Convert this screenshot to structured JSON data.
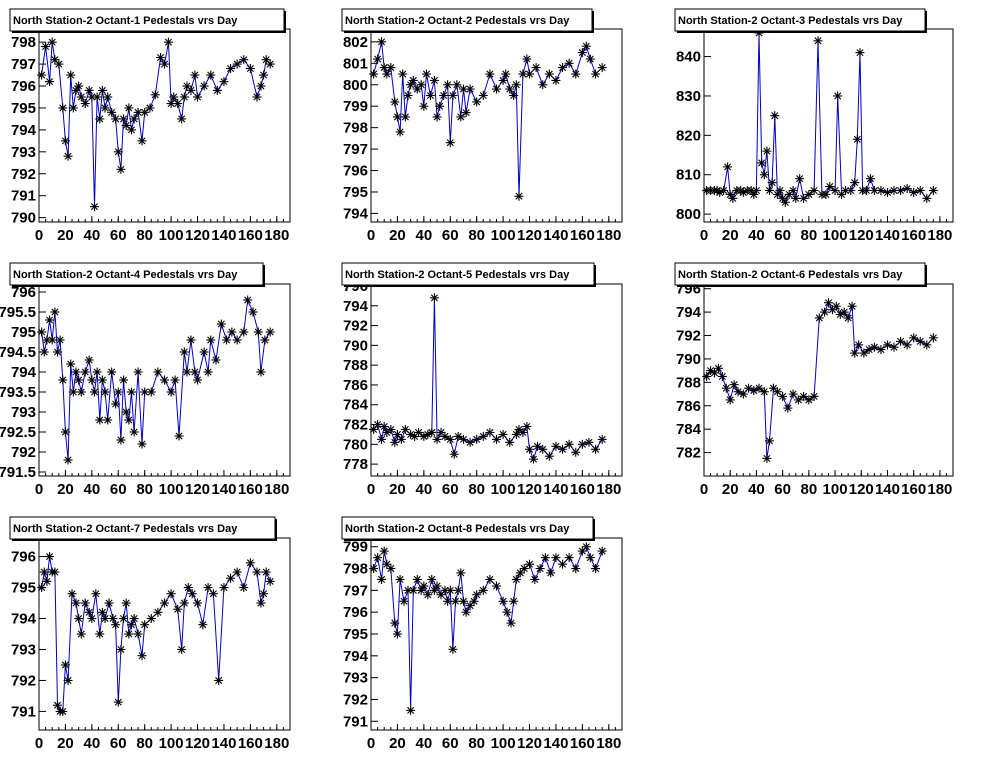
{
  "chart_data": [
    {
      "type": "line",
      "title": "North Station-2 Octant-1 Pedestals vrs Day",
      "xlim": [
        0,
        190
      ],
      "ylim": [
        789.8,
        798.6
      ],
      "xticks": [
        0,
        20,
        40,
        60,
        80,
        100,
        120,
        140,
        160,
        180
      ],
      "yticks": [
        790,
        791,
        792,
        793,
        794,
        795,
        796,
        797,
        798
      ],
      "x": [
        2,
        5,
        8,
        10,
        12,
        15,
        18,
        20,
        22,
        24,
        26,
        28,
        30,
        32,
        35,
        38,
        40,
        42,
        44,
        46,
        48,
        50,
        52,
        55,
        58,
        60,
        62,
        64,
        66,
        68,
        70,
        72,
        75,
        78,
        80,
        84,
        88,
        92,
        95,
        98,
        100,
        102,
        105,
        108,
        110,
        112,
        115,
        118,
        120,
        125,
        130,
        135,
        140,
        145,
        150,
        155,
        160,
        165,
        168,
        170,
        172,
        175
      ],
      "y": [
        796.5,
        797.8,
        796.2,
        798.0,
        797.2,
        797.0,
        795.0,
        793.5,
        792.8,
        796.5,
        795.0,
        795.8,
        796.0,
        795.5,
        795.2,
        795.8,
        795.5,
        790.5,
        795.5,
        794.5,
        795.8,
        795.0,
        795.5,
        794.8,
        794.5,
        793.0,
        792.2,
        794.5,
        794.2,
        795.0,
        794.0,
        794.5,
        794.8,
        793.5,
        794.8,
        795.0,
        795.6,
        797.3,
        797.0,
        798.0,
        795.2,
        795.5,
        795.2,
        794.5,
        795.5,
        796.0,
        795.8,
        796.5,
        795.5,
        796.0,
        796.5,
        795.8,
        796.2,
        796.8,
        797.0,
        797.2,
        796.8,
        795.5,
        796.0,
        796.5,
        797.2,
        797.0
      ]
    },
    {
      "type": "line",
      "title": "North Station-2 Octant-2 Pedestals vrs Day",
      "xlim": [
        0,
        190
      ],
      "ylim": [
        793.6,
        802.6
      ],
      "xticks": [
        0,
        20,
        40,
        60,
        80,
        100,
        120,
        140,
        160,
        180
      ],
      "yticks": [
        794,
        795,
        796,
        797,
        798,
        799,
        800,
        801,
        802
      ],
      "x": [
        2,
        5,
        8,
        10,
        12,
        15,
        18,
        20,
        22,
        24,
        26,
        28,
        30,
        32,
        35,
        38,
        40,
        42,
        45,
        48,
        50,
        52,
        55,
        58,
        60,
        62,
        65,
        68,
        70,
        72,
        75,
        80,
        85,
        90,
        95,
        100,
        102,
        105,
        108,
        110,
        112,
        115,
        118,
        120,
        125,
        130,
        135,
        140,
        145,
        150,
        155,
        160,
        163,
        166,
        170,
        175
      ],
      "y": [
        800.5,
        801.2,
        802.0,
        800.8,
        800.5,
        800.8,
        799.2,
        798.5,
        797.8,
        800.5,
        798.5,
        799.5,
        800.0,
        800.2,
        799.8,
        800.0,
        799.0,
        800.5,
        799.5,
        800.2,
        798.5,
        799.0,
        799.5,
        800.0,
        797.3,
        799.5,
        800.0,
        798.5,
        799.8,
        798.7,
        799.8,
        799.2,
        799.5,
        800.5,
        799.8,
        800.2,
        800.5,
        799.8,
        799.5,
        800.0,
        794.8,
        800.5,
        801.2,
        800.5,
        800.8,
        800.0,
        800.5,
        800.2,
        800.8,
        801.0,
        800.5,
        801.5,
        801.8,
        801.2,
        800.5,
        800.8
      ]
    },
    {
      "type": "line",
      "title": "North Station-2 Octant-3 Pedestals vrs Day",
      "xlim": [
        0,
        190
      ],
      "ylim": [
        798,
        847
      ],
      "xticks": [
        0,
        20,
        40,
        60,
        80,
        100,
        120,
        140,
        160,
        180
      ],
      "yticks": [
        800,
        810,
        820,
        830,
        840
      ],
      "x": [
        2,
        5,
        8,
        10,
        12,
        15,
        18,
        20,
        22,
        25,
        28,
        30,
        33,
        36,
        38,
        40,
        42,
        44,
        46,
        48,
        50,
        52,
        54,
        56,
        58,
        60,
        62,
        65,
        68,
        70,
        73,
        76,
        80,
        84,
        87,
        90,
        93,
        96,
        100,
        102,
        105,
        108,
        112,
        115,
        117,
        119,
        121,
        124,
        127,
        130,
        135,
        140,
        145,
        150,
        155,
        160,
        165,
        170,
        175
      ],
      "y": [
        806,
        806,
        806,
        806,
        805.5,
        806,
        812,
        805,
        804,
        806,
        806,
        805.5,
        806,
        806,
        805,
        806,
        846,
        813,
        810,
        816,
        806,
        808,
        825,
        805,
        806,
        804,
        803,
        805,
        806,
        804,
        809,
        804,
        805,
        806,
        844,
        805,
        805,
        807,
        806,
        830,
        805,
        806,
        806,
        808,
        819,
        841,
        806,
        806,
        809,
        806,
        806,
        805.5,
        806,
        806,
        806.5,
        805.5,
        806,
        804,
        806
      ]
    },
    {
      "type": "line",
      "title": "North Station-2 Octant-4 Pedestals vrs Day",
      "xlim": [
        0,
        190
      ],
      "ylim": [
        791.4,
        796.2
      ],
      "xticks": [
        0,
        20,
        40,
        60,
        80,
        100,
        120,
        140,
        160,
        180
      ],
      "yticks": [
        791.5,
        792,
        792.5,
        793,
        793.5,
        794,
        794.5,
        795,
        795.5,
        796
      ],
      "x": [
        2,
        4,
        6,
        8,
        10,
        12,
        14,
        16,
        18,
        20,
        22,
        24,
        26,
        28,
        30,
        32,
        35,
        38,
        40,
        42,
        44,
        46,
        48,
        50,
        52,
        55,
        58,
        60,
        62,
        64,
        66,
        68,
        70,
        72,
        75,
        78,
        80,
        85,
        90,
        95,
        100,
        103,
        106,
        110,
        112,
        115,
        118,
        120,
        125,
        128,
        130,
        134,
        138,
        142,
        146,
        150,
        155,
        158,
        162,
        166,
        168,
        171,
        175
      ],
      "y": [
        795.0,
        794.5,
        794.8,
        795.3,
        794.8,
        795.5,
        794.5,
        794.8,
        793.8,
        792.5,
        791.8,
        794.2,
        793.5,
        794.0,
        793.8,
        793.5,
        794.0,
        794.3,
        793.8,
        793.5,
        794.0,
        792.8,
        793.8,
        793.5,
        792.8,
        794.0,
        793.2,
        793.5,
        792.3,
        793.8,
        793.0,
        792.8,
        793.5,
        792.5,
        794.0,
        792.2,
        793.5,
        793.5,
        794.0,
        793.8,
        793.5,
        793.8,
        792.4,
        794.5,
        794.0,
        794.8,
        794.0,
        793.8,
        794.5,
        794.0,
        794.8,
        794.3,
        795.2,
        794.8,
        795.0,
        794.8,
        795.0,
        795.8,
        795.5,
        795.0,
        794.0,
        794.8,
        795.0
      ]
    },
    {
      "type": "line",
      "title": "North Station-2 Octant-5 Pedestals vrs Day",
      "xlim": [
        0,
        190
      ],
      "ylim": [
        776.8,
        796.2
      ],
      "xticks": [
        0,
        20,
        40,
        60,
        80,
        100,
        120,
        140,
        160,
        180
      ],
      "yticks": [
        778,
        780,
        782,
        784,
        786,
        788,
        790,
        792,
        794,
        796
      ],
      "x": [
        2,
        5,
        8,
        10,
        12,
        15,
        18,
        20,
        23,
        26,
        30,
        33,
        36,
        40,
        43,
        46,
        48,
        50,
        53,
        56,
        60,
        63,
        66,
        70,
        75,
        80,
        85,
        90,
        95,
        100,
        105,
        110,
        112,
        115,
        118,
        120,
        123,
        126,
        130,
        135,
        140,
        145,
        150,
        155,
        160,
        165,
        170,
        175
      ],
      "y": [
        781.5,
        782.0,
        780.5,
        781.8,
        781.2,
        781.5,
        780.2,
        781.0,
        780.5,
        781.5,
        781.0,
        780.8,
        781.2,
        780.8,
        781.0,
        781.2,
        794.8,
        780.5,
        781.2,
        780.8,
        780.5,
        779.0,
        780.8,
        780.5,
        780.2,
        780.5,
        780.8,
        781.2,
        780.5,
        781.0,
        780.2,
        781.0,
        781.5,
        781.2,
        781.8,
        779.5,
        778.5,
        779.8,
        779.5,
        778.8,
        779.8,
        779.5,
        780.0,
        779.2,
        780.0,
        780.2,
        779.5,
        780.5
      ]
    },
    {
      "type": "line",
      "title": "North Station-2 Octant-6 Pedestals vrs Day",
      "xlim": [
        0,
        190
      ],
      "ylim": [
        780,
        796.4
      ],
      "xticks": [
        0,
        20,
        40,
        60,
        80,
        100,
        120,
        140,
        160,
        180
      ],
      "yticks": [
        782,
        784,
        786,
        788,
        790,
        792,
        794,
        796
      ],
      "x": [
        2,
        5,
        8,
        11,
        14,
        17,
        20,
        23,
        26,
        30,
        34,
        38,
        42,
        46,
        48,
        50,
        53,
        56,
        60,
        64,
        68,
        72,
        76,
        80,
        84,
        88,
        92,
        95,
        98,
        101,
        104,
        107,
        110,
        113,
        115,
        118,
        122,
        126,
        130,
        135,
        140,
        145,
        150,
        155,
        160,
        165,
        170,
        175
      ],
      "y": [
        788.5,
        789.0,
        788.8,
        789.2,
        788.5,
        787.5,
        786.5,
        787.8,
        787.2,
        787.0,
        787.5,
        787.3,
        787.5,
        787.2,
        781.5,
        783.0,
        787.5,
        787.2,
        786.8,
        785.8,
        787.0,
        786.5,
        786.8,
        786.5,
        786.8,
        793.5,
        794.0,
        794.8,
        794.2,
        794.5,
        793.8,
        794.0,
        793.5,
        794.5,
        790.5,
        791.2,
        790.5,
        790.8,
        791.0,
        790.8,
        791.2,
        791.0,
        791.5,
        791.2,
        791.8,
        791.5,
        791.2,
        791.8
      ]
    },
    {
      "type": "line",
      "title": "North Station-2 Octant-7 Pedestals vrs Day",
      "xlim": [
        0,
        190
      ],
      "ylim": [
        790.4,
        796.6
      ],
      "xticks": [
        0,
        20,
        40,
        60,
        80,
        100,
        120,
        140,
        160,
        180
      ],
      "yticks": [
        791,
        792,
        793,
        794,
        795,
        796
      ],
      "x": [
        2,
        4,
        6,
        8,
        10,
        12,
        14,
        16,
        18,
        20,
        22,
        25,
        28,
        30,
        32,
        35,
        38,
        40,
        43,
        46,
        48,
        50,
        53,
        56,
        58,
        60,
        62,
        64,
        66,
        68,
        70,
        72,
        75,
        78,
        80,
        85,
        90,
        95,
        100,
        105,
        108,
        110,
        113,
        116,
        120,
        124,
        128,
        132,
        136,
        140,
        145,
        150,
        155,
        160,
        165,
        168,
        170,
        172,
        175
      ],
      "y": [
        795.0,
        795.5,
        795.2,
        796.0,
        795.5,
        795.5,
        791.2,
        791.0,
        791.0,
        792.5,
        792.0,
        794.8,
        794.5,
        794.0,
        793.5,
        794.5,
        794.2,
        794.0,
        794.8,
        793.5,
        794.2,
        794.0,
        794.5,
        794.0,
        793.8,
        791.3,
        793.0,
        794.0,
        794.5,
        793.5,
        793.8,
        794.0,
        793.5,
        792.8,
        793.8,
        794.0,
        794.2,
        794.5,
        794.8,
        794.3,
        793.0,
        794.5,
        795.0,
        794.8,
        794.5,
        793.8,
        795.0,
        794.8,
        792.0,
        795.0,
        795.3,
        795.5,
        795.0,
        795.8,
        795.5,
        794.5,
        794.8,
        795.5,
        795.2
      ]
    },
    {
      "type": "line",
      "title": "North Station-2 Octant-8 Pedestals vrs Day",
      "xlim": [
        0,
        190
      ],
      "ylim": [
        790.6,
        799.4
      ],
      "xticks": [
        0,
        20,
        40,
        60,
        80,
        100,
        120,
        140,
        160,
        180
      ],
      "yticks": [
        791,
        792,
        793,
        794,
        795,
        796,
        797,
        798,
        799
      ],
      "x": [
        2,
        5,
        8,
        10,
        12,
        15,
        18,
        20,
        22,
        25,
        28,
        30,
        32,
        35,
        38,
        40,
        43,
        46,
        48,
        50,
        53,
        56,
        58,
        60,
        62,
        64,
        66,
        68,
        70,
        72,
        75,
        78,
        80,
        85,
        90,
        95,
        100,
        103,
        106,
        108,
        110,
        113,
        116,
        120,
        124,
        128,
        132,
        136,
        140,
        145,
        150,
        155,
        160,
        163,
        166,
        170,
        175
      ],
      "y": [
        798.0,
        798.5,
        797.5,
        798.8,
        798.2,
        798.0,
        795.5,
        795.0,
        797.5,
        796.5,
        797.0,
        791.5,
        797.0,
        797.5,
        797.0,
        797.2,
        796.8,
        797.5,
        797.0,
        797.2,
        796.8,
        797.0,
        796.5,
        797.0,
        794.3,
        796.5,
        797.0,
        797.8,
        796.5,
        796.0,
        796.3,
        796.5,
        796.8,
        797.0,
        797.5,
        797.2,
        796.5,
        796.0,
        795.5,
        796.5,
        797.5,
        797.8,
        798.0,
        798.2,
        797.5,
        798.0,
        798.5,
        797.8,
        798.5,
        798.2,
        798.5,
        798.0,
        798.8,
        799.0,
        798.5,
        798.0,
        798.8
      ]
    }
  ]
}
